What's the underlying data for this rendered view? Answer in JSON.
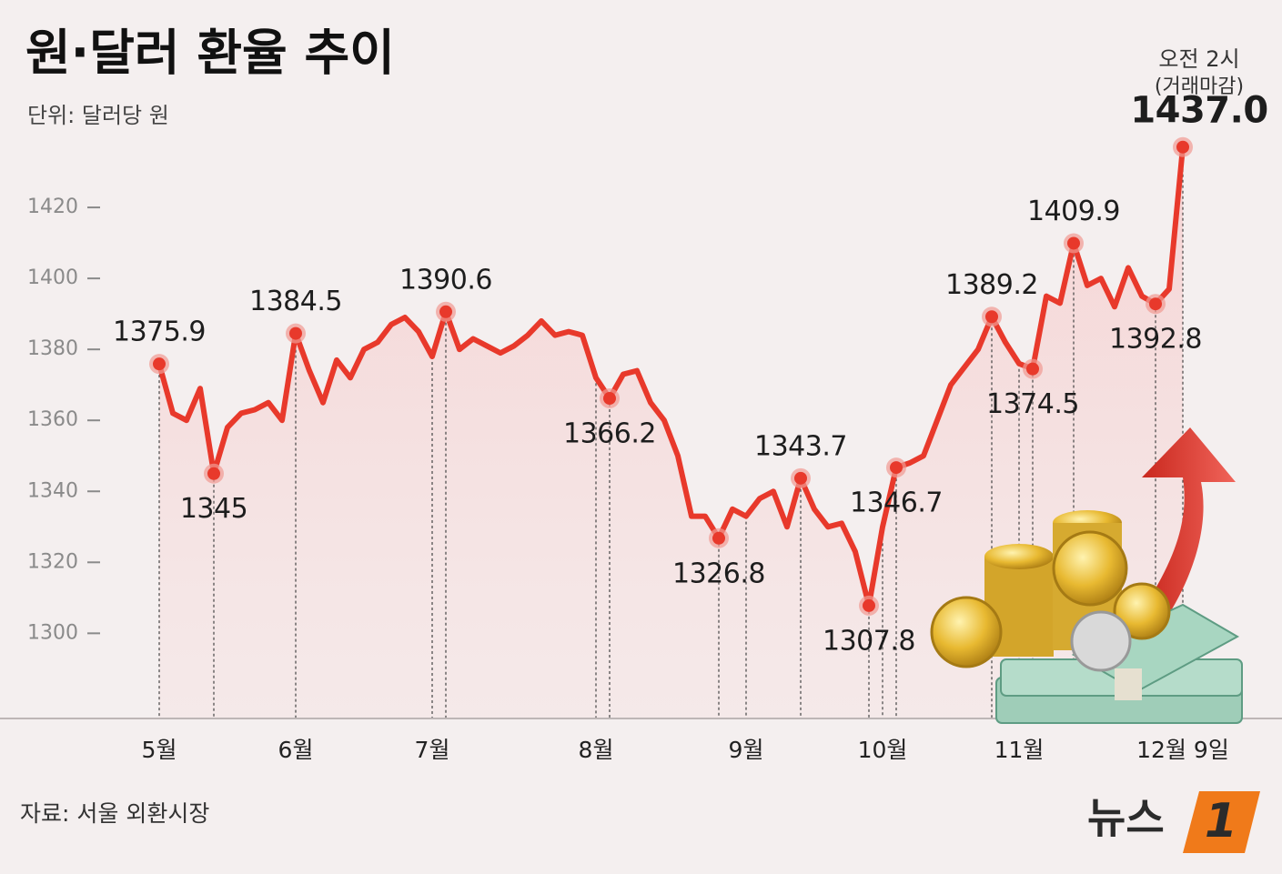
{
  "chart_data": {
    "type": "line",
    "title": "원·달러 환율 추이",
    "subtitle": "단위: 달러당 원",
    "source": "자료: 서울 외환시장",
    "logo": {
      "text": "뉴스",
      "mark": "1"
    },
    "annotation": [
      "오전 2시",
      "(거래마감)"
    ],
    "color": "#e8392b",
    "ylim": [
      1276,
      1450
    ],
    "yticks": [
      1300,
      1320,
      1340,
      1360,
      1380,
      1400,
      1420
    ],
    "categories": [
      "5월",
      null,
      null,
      null,
      null,
      null,
      null,
      null,
      null,
      null,
      "6월",
      null,
      null,
      null,
      null,
      null,
      null,
      null,
      null,
      null,
      "7월",
      null,
      null,
      null,
      null,
      null,
      null,
      null,
      null,
      null,
      null,
      null,
      "8월",
      null,
      null,
      null,
      null,
      null,
      null,
      null,
      null,
      null,
      null,
      "9월",
      null,
      null,
      null,
      null,
      null,
      null,
      null,
      null,
      null,
      "10월",
      null,
      null,
      null,
      null,
      null,
      null,
      null,
      null,
      null,
      "11월",
      null,
      null,
      null,
      null,
      null,
      null,
      null,
      null,
      null,
      null,
      null,
      "12월 9일"
    ],
    "values": [
      1375.9,
      1362,
      1360,
      1369,
      1345,
      1358,
      1362,
      1363,
      1365,
      1360,
      1384.5,
      1374,
      1365,
      1377,
      1372,
      1380,
      1382,
      1387,
      1389,
      1385,
      1378,
      1390.6,
      1380,
      1383,
      1381,
      1379,
      1381,
      1384,
      1388,
      1384,
      1385,
      1384,
      1372,
      1366.2,
      1373,
      1374,
      1365,
      1360,
      1350,
      1333,
      1333,
      1326.8,
      1335,
      1333,
      1338,
      1340,
      1330,
      1343.7,
      1335,
      1330,
      1331,
      1323,
      1307.8,
      1330,
      1346.7,
      1348,
      1350,
      1360,
      1370,
      1375,
      1380,
      1389.2,
      1382,
      1376,
      1374.5,
      1395,
      1393,
      1409.9,
      1398,
      1400,
      1392,
      1403,
      1395,
      1392.8,
      1397,
      1437
    ],
    "value_labels": [
      "1375.9",
      null,
      null,
      null,
      "1345",
      null,
      null,
      null,
      null,
      null,
      "1384.5",
      null,
      null,
      null,
      null,
      null,
      null,
      null,
      null,
      null,
      null,
      "1390.6",
      null,
      null,
      null,
      null,
      null,
      null,
      null,
      null,
      null,
      null,
      null,
      "1366.2",
      null,
      null,
      null,
      null,
      null,
      null,
      null,
      "1326.8",
      null,
      null,
      null,
      null,
      null,
      "1343.7",
      null,
      null,
      null,
      null,
      "1307.8",
      null,
      "1346.7",
      null,
      null,
      null,
      null,
      null,
      null,
      "1389.2",
      null,
      null,
      "1374.5",
      null,
      null,
      "1409.9",
      null,
      null,
      null,
      null,
      null,
      "1392.8",
      null,
      "1437.0"
    ]
  }
}
